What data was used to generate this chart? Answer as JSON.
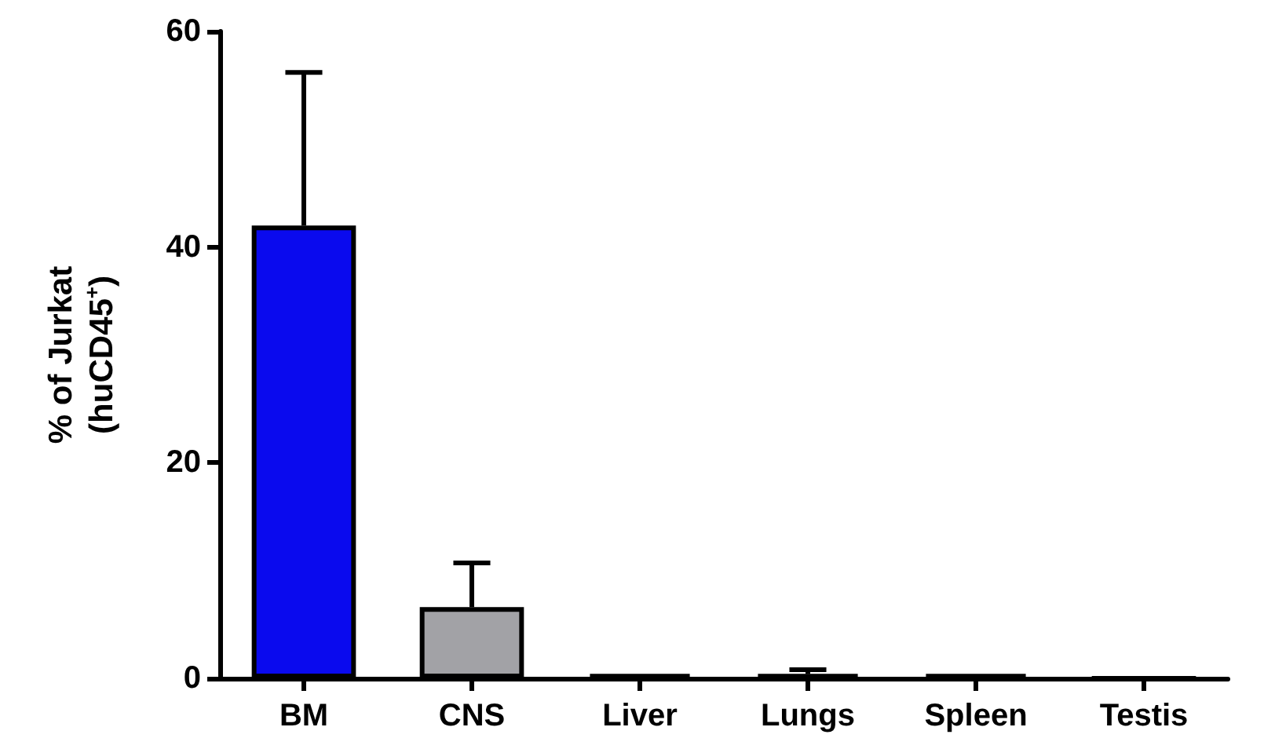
{
  "chart_data": {
    "type": "bar",
    "ylabel": "% of Jurkat\n(huCD45$^{+}$)",
    "categories": [
      "BM",
      "CNS",
      "Liver",
      "Lungs",
      "Spleen",
      "Testis"
    ],
    "values": [
      42,
      6.6,
      0.4,
      0.4,
      0.4,
      0
    ],
    "errors": [
      14.2,
      4.1,
      null,
      0.4,
      null,
      null
    ],
    "colors": [
      "#0a0aee",
      "#a2a2a6",
      "#000000",
      "#000000",
      "#000000",
      "#000000"
    ],
    "ylim": [
      0,
      60
    ],
    "yticks": [
      0,
      20,
      40,
      60
    ],
    "grid": false
  }
}
